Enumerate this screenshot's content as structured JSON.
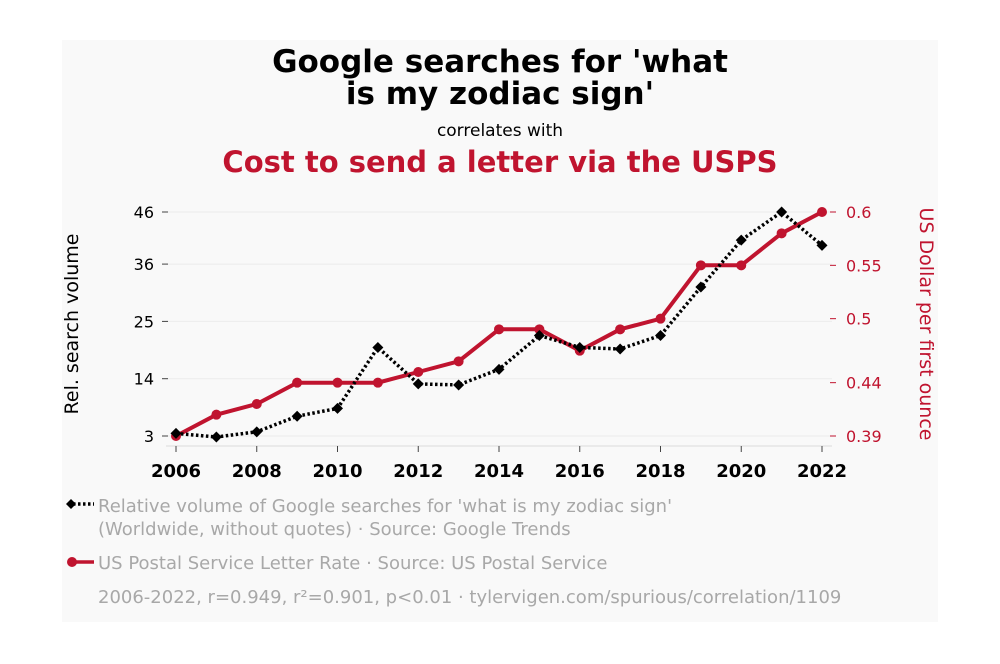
{
  "colors": {
    "series_a": "#000000",
    "series_b": "#c0142f",
    "muted": "#a8a8a8"
  },
  "header": {
    "title_line1": "Google searches for 'what",
    "title_line2": "is my zodiac sign'",
    "connector": "correlates with",
    "subtitle": "Cost to send a letter via the USPS"
  },
  "chart_data": {
    "type": "line",
    "x": [
      2006,
      2007,
      2008,
      2009,
      2010,
      2011,
      2012,
      2013,
      2014,
      2015,
      2016,
      2017,
      2018,
      2019,
      2020,
      2021,
      2022
    ],
    "series": [
      {
        "name": "Relative volume of Google searches for 'what is my zodiac sign'",
        "axis": "left",
        "style": "dotted",
        "marker": "diamond",
        "values": [
          3.5,
          2.8,
          3.8,
          6.8,
          8.3,
          20,
          13,
          12.8,
          15.8,
          22.3,
          20,
          19.7,
          22.3,
          31.6,
          40.6,
          46,
          39.6
        ]
      },
      {
        "name": "US Postal Service Letter Rate",
        "axis": "right",
        "style": "solid",
        "marker": "circle",
        "values": [
          0.39,
          0.41,
          0.42,
          0.44,
          0.44,
          0.44,
          0.45,
          0.46,
          0.49,
          0.49,
          0.47,
          0.49,
          0.5,
          0.55,
          0.55,
          0.58,
          0.6
        ]
      }
    ],
    "xlim": [
      2006,
      2022
    ],
    "x_ticks": [
      "2006",
      "2008",
      "2010",
      "2012",
      "2014",
      "2016",
      "2018",
      "2020",
      "2022"
    ],
    "y_left": {
      "label": "Rel. search volume",
      "ticks": [
        "3",
        "14",
        "25",
        "36",
        "46"
      ],
      "lim": [
        3,
        46
      ]
    },
    "y_right": {
      "label": "US Dollar per first ounce",
      "ticks": [
        "0.39",
        "0.44",
        "0.5",
        "0.55",
        "0.6"
      ],
      "lim": [
        0.39,
        0.6
      ]
    },
    "grid": true
  },
  "legend": {
    "a_line1": "Relative volume of Google searches for 'what is my zodiac sign'",
    "a_line2": "(Worldwide, without quotes) · Source: Google Trends",
    "b_line1": "US Postal Service Letter Rate · Source: US Postal Service"
  },
  "footer": {
    "stats": "2006-2022, r=0.949, r²=0.901, p<0.01 · tylervigen.com/spurious/correlation/1109"
  }
}
